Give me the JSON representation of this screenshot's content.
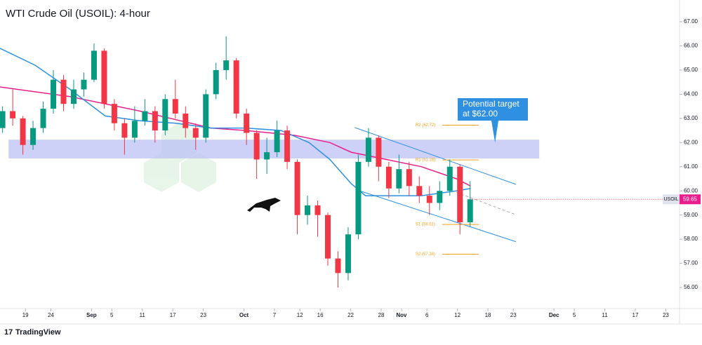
{
  "chart_data": {
    "type": "candlestick",
    "title": "WTI Crude Oil (USOIL): 4-hour",
    "symbol": "USOIL",
    "brand": "TradingView",
    "up_color": "#089981",
    "down_color": "#f23645",
    "xlim": [
      -5,
      128.7
    ],
    "ylim": [
      55.13,
      67.9
    ],
    "xticks": [
      {
        "value": 0,
        "label": "19"
      },
      {
        "value": 5,
        "label": "24"
      },
      {
        "value": 13,
        "label": "Sep"
      },
      {
        "value": 17,
        "label": "5"
      },
      {
        "value": 23,
        "label": "11"
      },
      {
        "value": 29,
        "label": "17"
      },
      {
        "value": 35,
        "label": "23"
      },
      {
        "value": 43,
        "label": "Oct"
      },
      {
        "value": 49,
        "label": "7"
      },
      {
        "value": 54,
        "label": "12"
      },
      {
        "value": 58,
        "label": "16"
      },
      {
        "value": 64,
        "label": "22"
      },
      {
        "value": 70,
        "label": "28"
      },
      {
        "value": 74,
        "label": "Nov"
      },
      {
        "value": 79,
        "label": "6"
      },
      {
        "value": 85,
        "label": "12"
      },
      {
        "value": 91,
        "label": "18"
      },
      {
        "value": 96,
        "label": "23"
      },
      {
        "value": 104,
        "label": "Dec"
      },
      {
        "value": 108,
        "label": "5"
      },
      {
        "value": 114,
        "label": "11"
      },
      {
        "value": 120,
        "label": "17"
      },
      {
        "value": 126,
        "label": "23"
      }
    ],
    "yticks": [
      {
        "value": 67,
        "label": "67.00"
      },
      {
        "value": 66,
        "label": "66.00"
      },
      {
        "value": 65,
        "label": "65.00"
      },
      {
        "value": 64,
        "label": "64.00"
      },
      {
        "value": 63,
        "label": "63.00"
      },
      {
        "value": 62,
        "label": "62.00"
      },
      {
        "value": 61,
        "label": "61.00"
      },
      {
        "value": 60,
        "label": "60.00"
      },
      {
        "value": 59,
        "label": "59.00"
      },
      {
        "value": 58,
        "label": "58.00"
      },
      {
        "value": 57,
        "label": "57.00"
      },
      {
        "value": 56,
        "label": "56.00"
      }
    ],
    "x": [
      -4.5,
      -2.5,
      -0.5,
      1.5,
      3.5,
      5.5,
      7.5,
      9.5,
      11.5,
      13.5,
      15.5,
      17.5,
      19.5,
      21.5,
      23.5,
      25.5,
      27.5,
      29.5,
      31.5,
      33.5,
      35.5,
      37.5,
      39.5,
      41.5,
      43.5,
      45.5,
      47.5,
      49.5,
      51.5,
      53.5,
      55.5,
      57.5,
      59.5,
      61.5,
      63.5,
      65.5,
      67.5,
      69.5,
      71.5,
      73.5,
      75.5,
      77.5,
      79.5,
      81.5,
      83.5,
      85.5,
      87.5
    ],
    "open": [
      62.6,
      63.3,
      63.0,
      61.9,
      62.6,
      63.4,
      64.6,
      63.6,
      64.2,
      64.6,
      65.8,
      63.6,
      62.8,
      62.2,
      62.9,
      63.3,
      62.5,
      63.8,
      63.2,
      62.6,
      62.2,
      64.0,
      65.0,
      65.4,
      63.2,
      62.4,
      61.3,
      61.6,
      62.5,
      61.2,
      59.0,
      59.4,
      59.0,
      57.2,
      56.6,
      58.2,
      61.2,
      62.2,
      61.0,
      60.1,
      60.9,
      60.2,
      59.8,
      59.5,
      60.0,
      61.0,
      58.7
    ],
    "high": [
      63.5,
      64.2,
      63.1,
      62.9,
      63.7,
      65.0,
      64.8,
      64.6,
      64.9,
      66.1,
      65.9,
      63.8,
      63.0,
      63.5,
      63.8,
      63.5,
      64.0,
      64.6,
      63.5,
      62.8,
      64.2,
      65.3,
      66.4,
      65.5,
      63.4,
      62.5,
      62.2,
      62.9,
      62.7,
      61.3,
      59.8,
      59.6,
      59.1,
      57.5,
      58.5,
      61.5,
      62.6,
      62.3,
      61.2,
      61.5,
      61.2,
      60.6,
      60.2,
      60.4,
      61.3,
      61.1,
      60.4
    ],
    "low": [
      62.4,
      62.7,
      61.5,
      61.7,
      62.4,
      63.2,
      63.3,
      63.4,
      63.9,
      64.5,
      63.4,
      62.5,
      61.5,
      62.0,
      62.7,
      62.0,
      62.3,
      63.0,
      62.2,
      61.7,
      62.0,
      63.8,
      64.6,
      63.0,
      61.9,
      60.5,
      60.7,
      61.4,
      60.9,
      58.2,
      58.6,
      58.1,
      56.9,
      56.0,
      56.3,
      58.0,
      61.0,
      60.4,
      59.7,
      59.9,
      59.8,
      59.5,
      59.0,
      59.2,
      59.8,
      58.2,
      58.5
    ],
    "close": [
      63.3,
      63.0,
      61.9,
      62.6,
      63.4,
      64.6,
      63.6,
      64.2,
      64.6,
      65.8,
      63.6,
      62.8,
      62.2,
      62.9,
      63.3,
      62.5,
      63.8,
      63.2,
      62.6,
      62.2,
      64.0,
      65.0,
      65.4,
      63.2,
      62.4,
      61.3,
      61.6,
      62.5,
      61.2,
      59.0,
      59.4,
      59.0,
      57.2,
      56.6,
      58.2,
      61.2,
      62.2,
      61.0,
      60.1,
      60.9,
      60.2,
      59.8,
      59.5,
      60.0,
      61.0,
      58.7,
      59.65
    ],
    "overlays": [
      {
        "color": "#e91e8c",
        "x": [
          -5,
          8.8,
          22.6,
          36.5,
          43.4,
          53,
          59.9,
          64.1,
          71,
          77.9,
          84.8,
          87.6
        ],
        "values": [
          64.3,
          63.9,
          63.3,
          62.6,
          62.5,
          62.3,
          62.0,
          61.6,
          61.3,
          61.0,
          60.5,
          60.2
        ]
      },
      {
        "color": "#2f8fe0",
        "x": [
          -5,
          1.9,
          8.8,
          15.7,
          22.6,
          29.6,
          36.5,
          43.4,
          50.3,
          55.8,
          59.9,
          64.1,
          66.9,
          71,
          77.9,
          84.8,
          87.6
        ],
        "values": [
          65.9,
          65.2,
          64.2,
          63.1,
          62.9,
          62.8,
          62.6,
          62.6,
          62.5,
          62.0,
          61.3,
          60.3,
          59.8,
          59.8,
          59.8,
          60.0,
          60.1
        ]
      }
    ],
    "zone": {
      "xlim": [
        -3.3,
        101.1
      ],
      "ylim": [
        61.34,
        62.12
      ],
      "color": "#b8bdf5"
    },
    "channel": [
      {
        "x": [
          64.8,
          96.5
        ],
        "values": [
          62.62,
          60.27
        ],
        "color": "#2f8fe0"
      },
      {
        "x": [
          65.5,
          96.5
        ],
        "values": [
          60.02,
          57.9
        ],
        "color": "#2f8fe0"
      }
    ],
    "midline": {
      "x": [
        84.8,
        96.5
      ],
      "values": [
        59.94,
        59.01
      ],
      "color": "#aaaaaa"
    },
    "pivot_xlim": [
      82,
      89.2
    ],
    "pivot_color": "#f7a21b",
    "pivots": [
      {
        "label": "R2 (62.72)",
        "value": 62.72
      },
      {
        "label": "R1 (61.28)",
        "value": 61.28
      },
      {
        "label": "S1 (58.61)",
        "value": 58.61
      },
      {
        "label": "S2 (57.38)",
        "value": 57.38
      }
    ],
    "callout": {
      "lines": [
        "Potential target",
        "at $62.00"
      ],
      "x": 92.4,
      "value": 62.0,
      "color": "#2f8fe0"
    }
  }
}
